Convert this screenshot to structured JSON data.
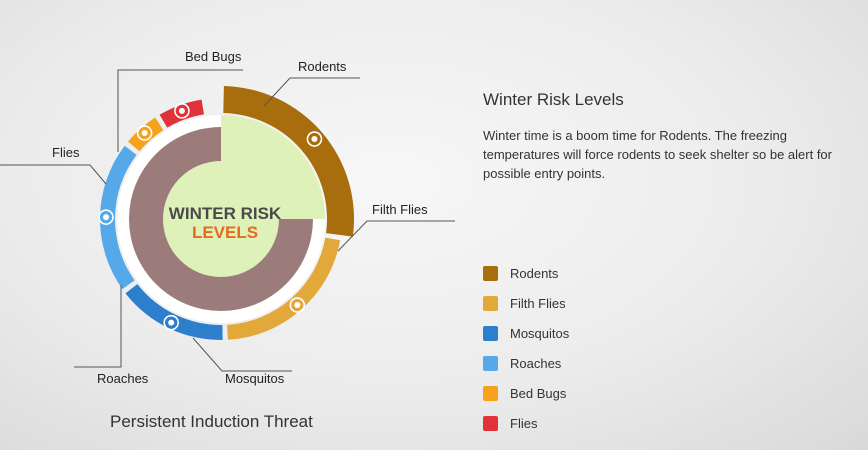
{
  "chart_data": {
    "type": "pie",
    "title": "Winter Risk Levels",
    "center_label": [
      "WINTER RISK",
      "LEVELS"
    ],
    "caption": "Persistent Induction Threat",
    "categories": [
      "Rodents",
      "Filth Flies",
      "Mosquitos",
      "Roaches",
      "Bed Bugs",
      "Flies"
    ],
    "values": [
      25,
      20,
      14,
      19,
      5,
      6
    ],
    "colors": [
      "#a86e0e",
      "#e2a83a",
      "#2d7fce",
      "#56a9e8",
      "#f7a21c",
      "#e0323a"
    ],
    "legend_placement": "right"
  },
  "info": {
    "title": "Winter Risk Levels",
    "text": "Winter time is a boom time for Rodents.  The freezing temperatures will force rodents to seek shelter so be alert for possible entry points."
  },
  "legend": [
    {
      "label": "Rodents",
      "color": "#a86e0e"
    },
    {
      "label": "Filth Flies",
      "color": "#e2a83a"
    },
    {
      "label": "Mosquitos",
      "color": "#2d7fce"
    },
    {
      "label": "Roaches",
      "color": "#56a9e8"
    },
    {
      "label": "Bed Bugs",
      "color": "#f7a21c"
    },
    {
      "label": "Flies",
      "color": "#e0323a"
    }
  ]
}
